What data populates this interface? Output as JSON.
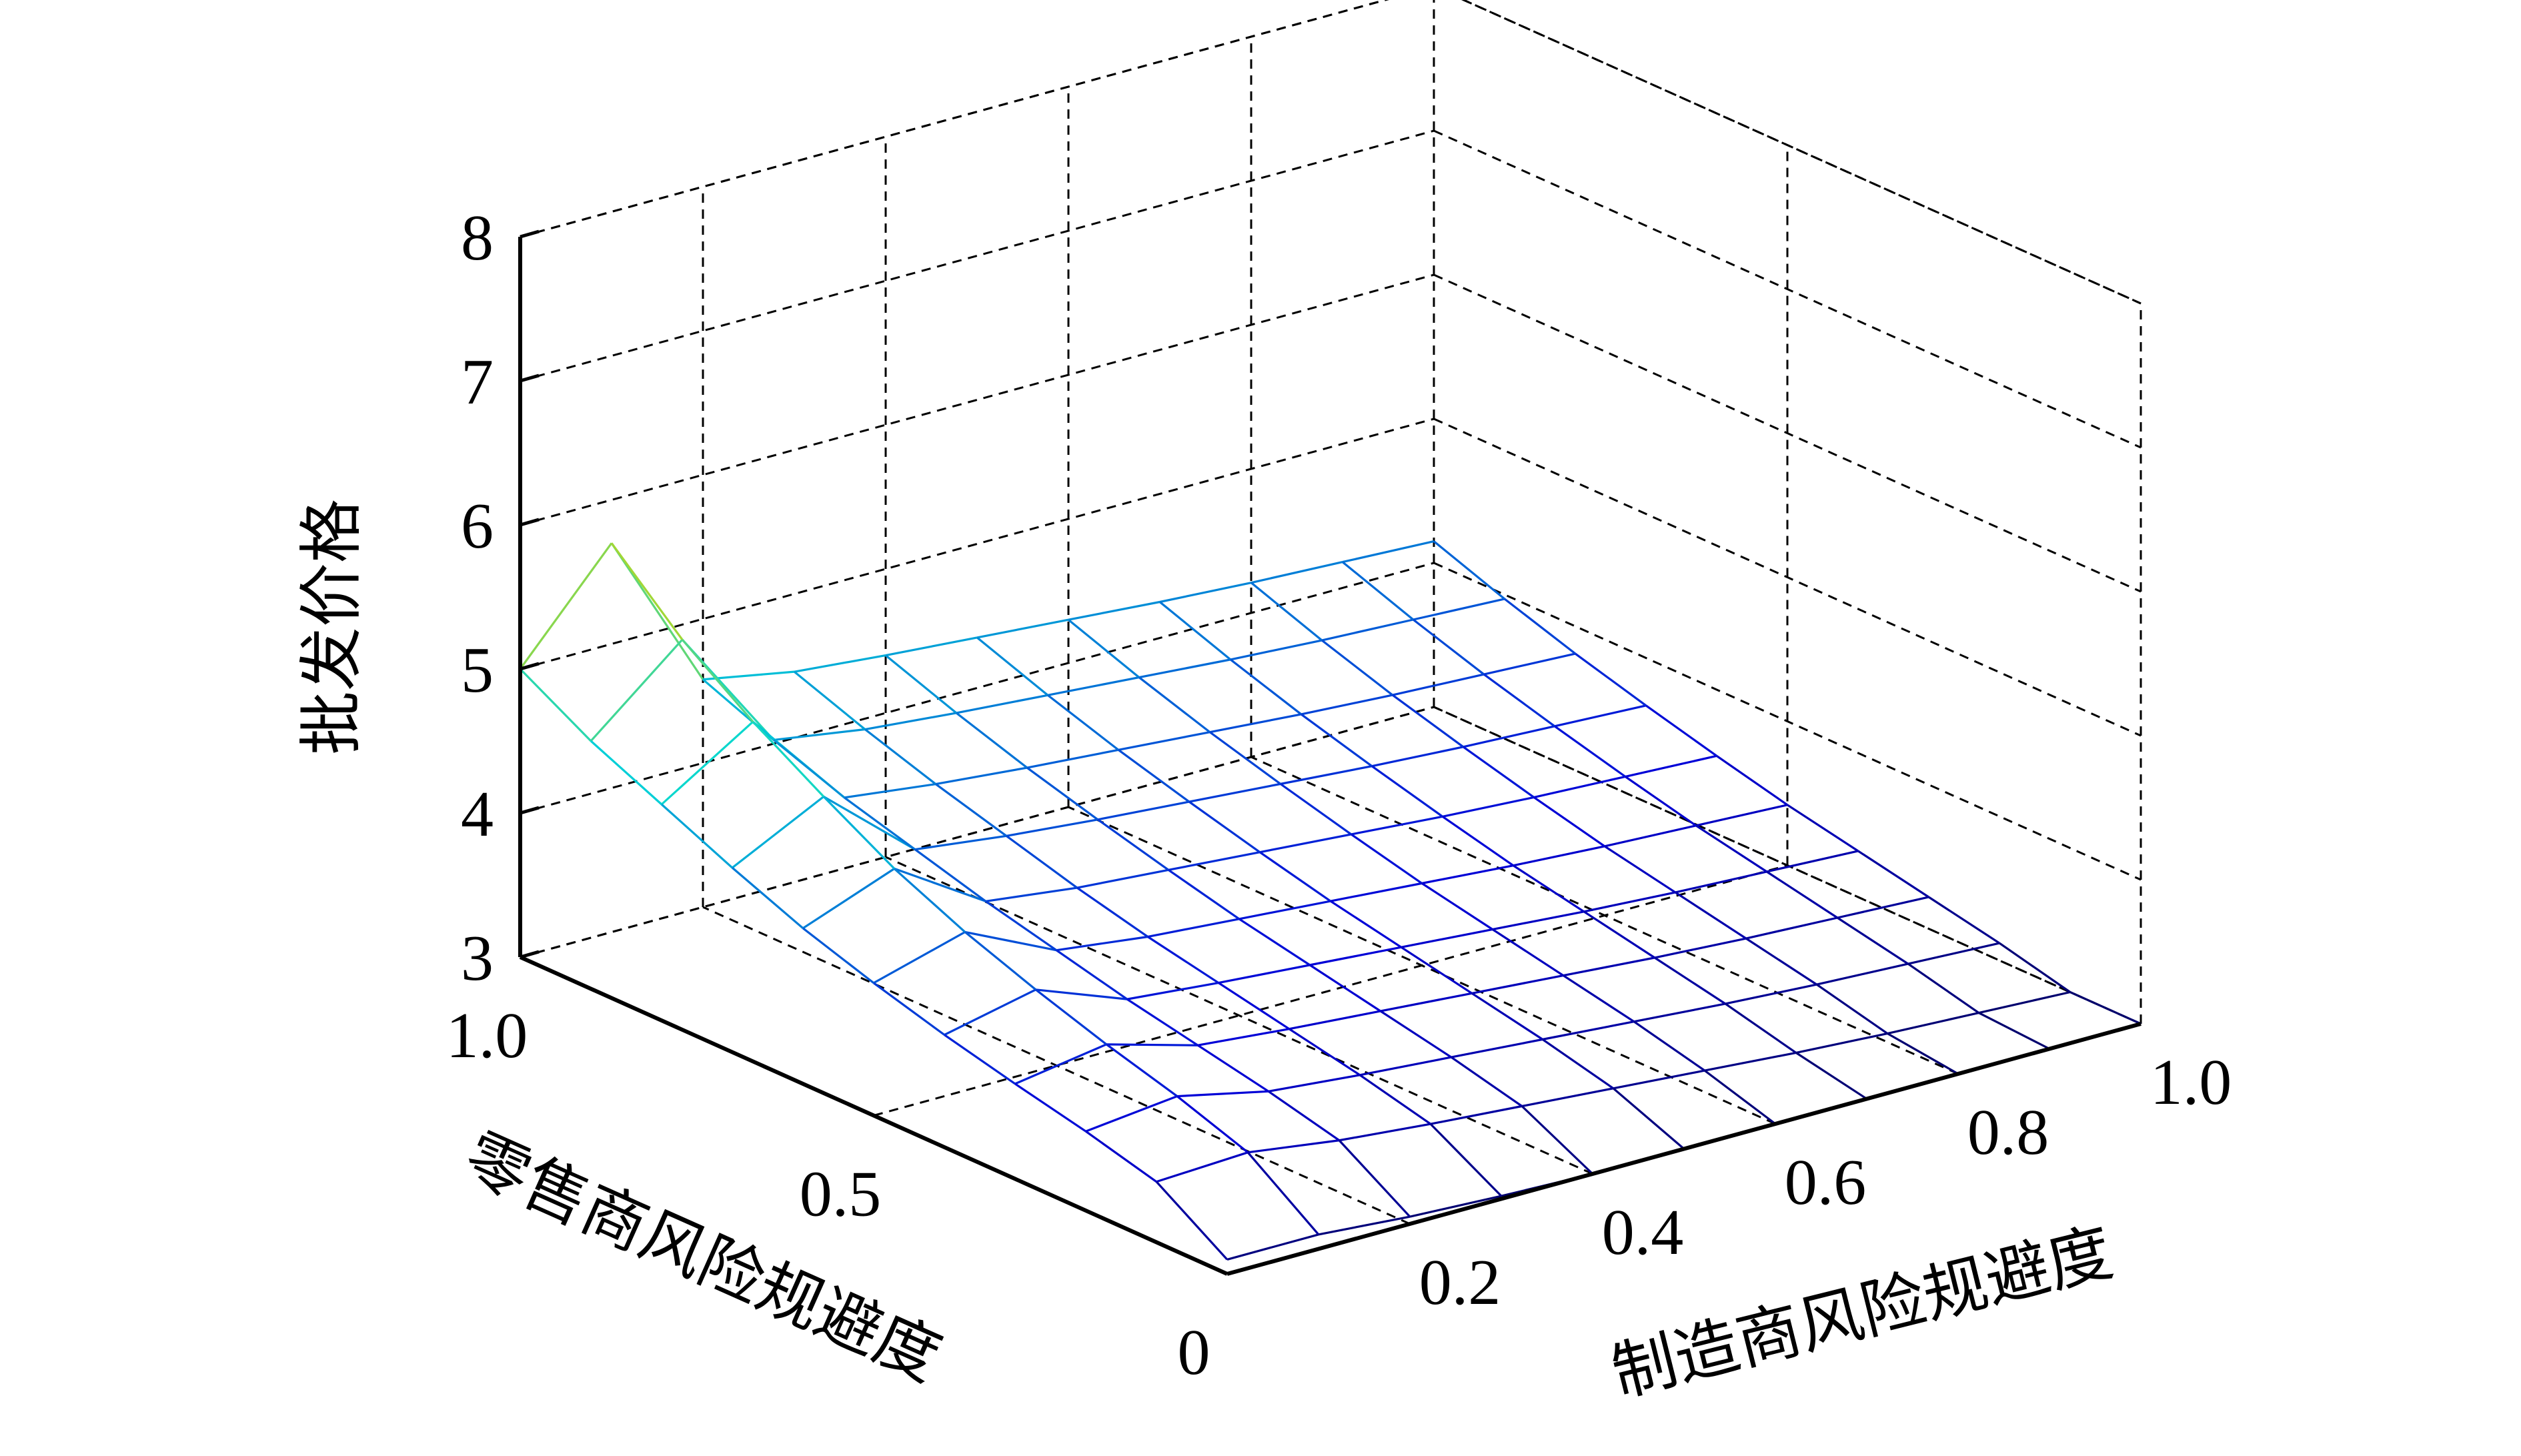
{
  "chart_data": {
    "type": "surface",
    "title": "",
    "xlabel": "制造商风险规避度",
    "ylabel": "零售商风险规避度",
    "zlabel": "批发价格",
    "x_ticks": [
      "0.2",
      "0.4",
      "0.6",
      "0.8",
      "1.0"
    ],
    "y_ticks": [
      "0",
      "0.5",
      "1.0"
    ],
    "z_ticks": [
      "3",
      "4",
      "5",
      "6",
      "7",
      "8"
    ],
    "xlim": [
      0,
      1.0
    ],
    "ylim": [
      0,
      1.0
    ],
    "zlim": [
      3,
      8
    ],
    "grid": true,
    "x": [
      0,
      0.1,
      0.2,
      0.3,
      0.4,
      0.5,
      0.6,
      0.7,
      0.8,
      0.9,
      1.0
    ],
    "y": [
      0,
      0.1,
      0.2,
      0.3,
      0.4,
      0.5,
      0.6,
      0.7,
      0.8,
      0.9,
      1.0
    ],
    "z": [
      [
        3.1,
        3.42,
        3.55,
        3.66,
        3.78,
        3.92,
        4.08,
        4.28,
        4.5,
        4.72,
        5.0
      ],
      [
        3.1,
        3.45,
        3.62,
        3.76,
        3.92,
        4.1,
        4.32,
        4.6,
        4.9,
        5.25,
        5.7
      ],
      [
        3.05,
        3.36,
        3.48,
        3.58,
        3.68,
        3.8,
        3.92,
        4.06,
        4.2,
        4.38,
        4.58
      ],
      [
        3.02,
        3.3,
        3.42,
        3.52,
        3.62,
        3.72,
        3.84,
        3.98,
        4.12,
        4.28,
        4.46
      ],
      [
        3.0,
        3.25,
        3.37,
        3.47,
        3.57,
        3.67,
        3.79,
        3.92,
        4.06,
        4.22,
        4.4
      ],
      [
        3.0,
        3.2,
        3.32,
        3.42,
        3.52,
        3.62,
        3.74,
        3.87,
        4.01,
        4.17,
        4.35
      ],
      [
        3.0,
        3.15,
        3.27,
        3.37,
        3.47,
        3.57,
        3.69,
        3.82,
        3.96,
        4.12,
        4.3
      ],
      [
        3.0,
        3.1,
        3.22,
        3.32,
        3.42,
        3.52,
        3.64,
        3.77,
        3.91,
        4.07,
        4.25
      ],
      [
        3.0,
        3.06,
        3.18,
        3.28,
        3.38,
        3.48,
        3.6,
        3.73,
        3.87,
        4.03,
        4.21
      ],
      [
        3.0,
        3.03,
        3.15,
        3.25,
        3.35,
        3.45,
        3.57,
        3.7,
        3.84,
        4.0,
        4.18
      ],
      [
        3.0,
        3.0,
        3.12,
        3.22,
        3.32,
        3.42,
        3.54,
        3.67,
        3.81,
        3.97,
        4.15
      ]
    ]
  }
}
